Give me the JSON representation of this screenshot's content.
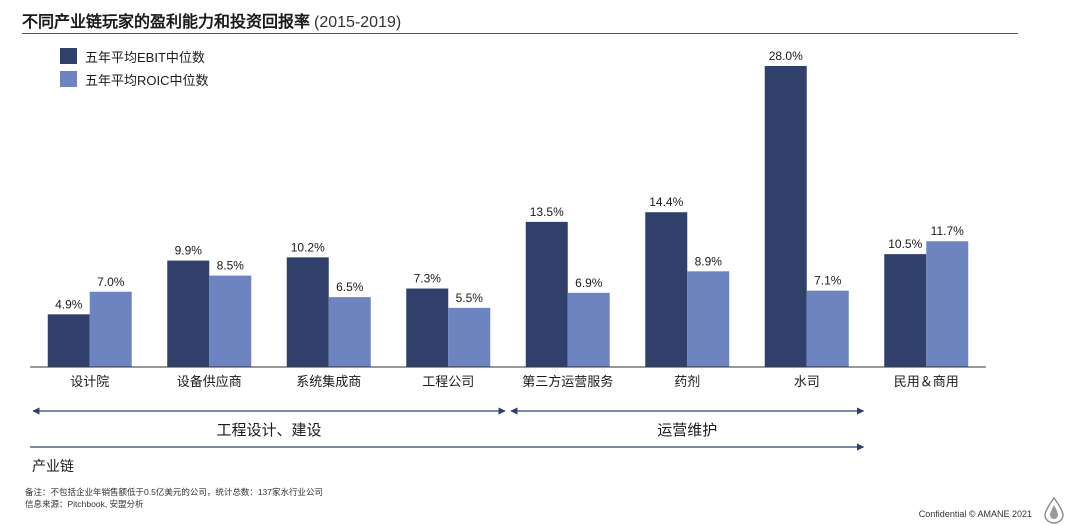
{
  "header": {
    "title": "不同产业链玩家的盈利能力和投资回报率",
    "subtitle": "(2015-2019)"
  },
  "colors": {
    "ebit": "#30406b",
    "roic": "#6d84c0",
    "arrow": "#30406b"
  },
  "chart_data": {
    "type": "bar",
    "categories": [
      "设计院",
      "设备供应商",
      "系统集成商",
      "工程公司",
      "第三方运营服务",
      "药剂",
      "水司",
      "民用＆商用"
    ],
    "series": [
      {
        "name": "五年平均EBIT中位数",
        "values": [
          4.9,
          9.9,
          10.2,
          7.3,
          13.5,
          14.4,
          28.0,
          10.5
        ],
        "labels": [
          "4.9%",
          "9.9%",
          "10.2%",
          "7.3%",
          "13.5%",
          "14.4%",
          "28.0%",
          "10.5%"
        ]
      },
      {
        "name": "五年平均ROIC中位数",
        "values": [
          7.0,
          8.5,
          6.5,
          5.5,
          6.9,
          8.9,
          7.1,
          11.7
        ],
        "labels": [
          "7.0%",
          "8.5%",
          "6.5%",
          "5.5%",
          "6.9%",
          "8.9%",
          "7.1%",
          "11.7%"
        ]
      }
    ],
    "ylim": [
      0,
      28.0
    ],
    "grid": false,
    "legend_position": "top-left"
  },
  "segments": [
    {
      "label": "工程设计、建设",
      "from": 0,
      "to": 3
    },
    {
      "label": "运营维护",
      "from": 4,
      "to": 6
    }
  ],
  "chain_label": "产业链",
  "footnotes": {
    "note": "备注：不包括企业年销售额低于0.5亿美元的公司，统计总数：137家水行业公司",
    "source": "信息来源：Pitchbook, 安盟分析"
  },
  "confidential": "Confidential © AMANE 2021",
  "logo_icon": "water-drop-icon"
}
